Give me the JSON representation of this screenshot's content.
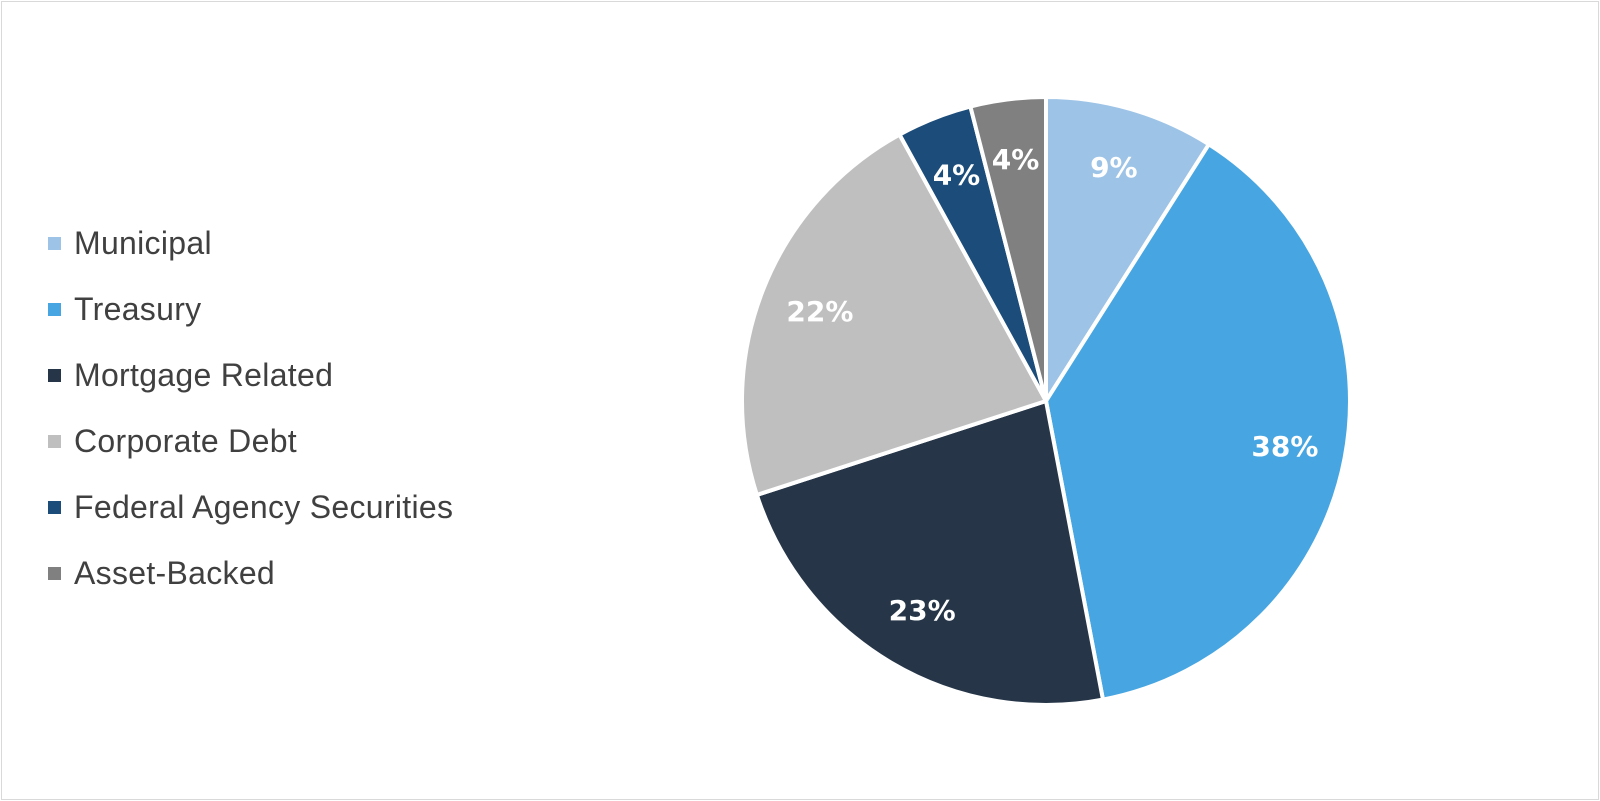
{
  "chart_data": {
    "type": "pie",
    "title": "",
    "start_angle_deg": 0,
    "direction": "clockwise",
    "legend_position": "left",
    "slices": [
      {
        "name": "Municipal",
        "value": 9,
        "label": "9%",
        "color": "#9dc3e6"
      },
      {
        "name": "Treasury",
        "value": 38,
        "label": "38%",
        "color": "#47a6e1"
      },
      {
        "name": "Mortgage Related",
        "value": 23,
        "label": "23%",
        "color": "#263648"
      },
      {
        "name": "Corporate Debt",
        "value": 22,
        "label": "22%",
        "color": "#bfbfbf"
      },
      {
        "name": "Federal Agency Securities",
        "value": 4,
        "label": "4%",
        "color": "#1b4c7a"
      },
      {
        "name": "Asset-Backed",
        "value": 4,
        "label": "4%",
        "color": "#808080"
      }
    ]
  }
}
